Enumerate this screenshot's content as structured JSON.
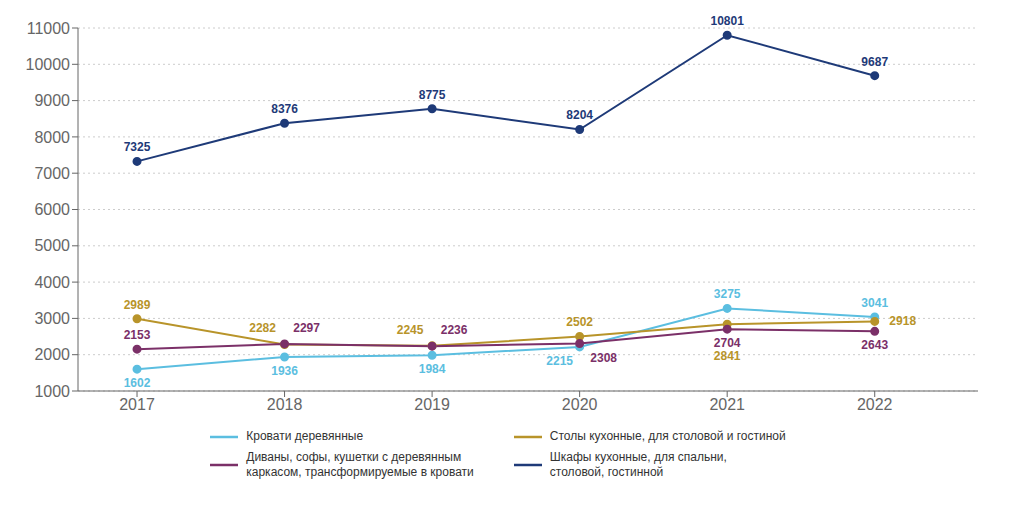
{
  "chart_data": {
    "type": "line",
    "x": [
      2017,
      2018,
      2019,
      2020,
      2021,
      2022
    ],
    "xlim": [
      2016.6,
      2022.7
    ],
    "xticks": [
      2017,
      2018,
      2019,
      2020,
      2021,
      2022
    ],
    "ylim": [
      1000,
      11000
    ],
    "yticks": [
      1000,
      2000,
      3000,
      4000,
      5000,
      6000,
      7000,
      8000,
      9000,
      10000,
      11000
    ],
    "grid": true,
    "legend": "bottom",
    "data_labels": true,
    "marker": "circle",
    "line_style": "solid",
    "series": [
      {
        "name": "Кровати деревянные",
        "color": "#5bbee0",
        "values": [
          1602,
          1936,
          1984,
          2215,
          3275,
          3041
        ]
      },
      {
        "name": "Столы кухонные, для столовой и гостиной",
        "color": "#b8942a",
        "values": [
          2989,
          2282,
          2245,
          2502,
          2841,
          2918
        ]
      },
      {
        "name": "Диваны, софы, кушетки с деревянным\nкаркасом, трансформируемые в кровати",
        "color": "#7b3068",
        "values": [
          2153,
          2297,
          2236,
          2308,
          2704,
          2643
        ]
      },
      {
        "name": "Шкафы кухонные, для спальни,\nстоловой, гостинной",
        "color": "#1e3a78",
        "values": [
          7325,
          8376,
          8775,
          8204,
          10801,
          9687
        ]
      }
    ]
  }
}
